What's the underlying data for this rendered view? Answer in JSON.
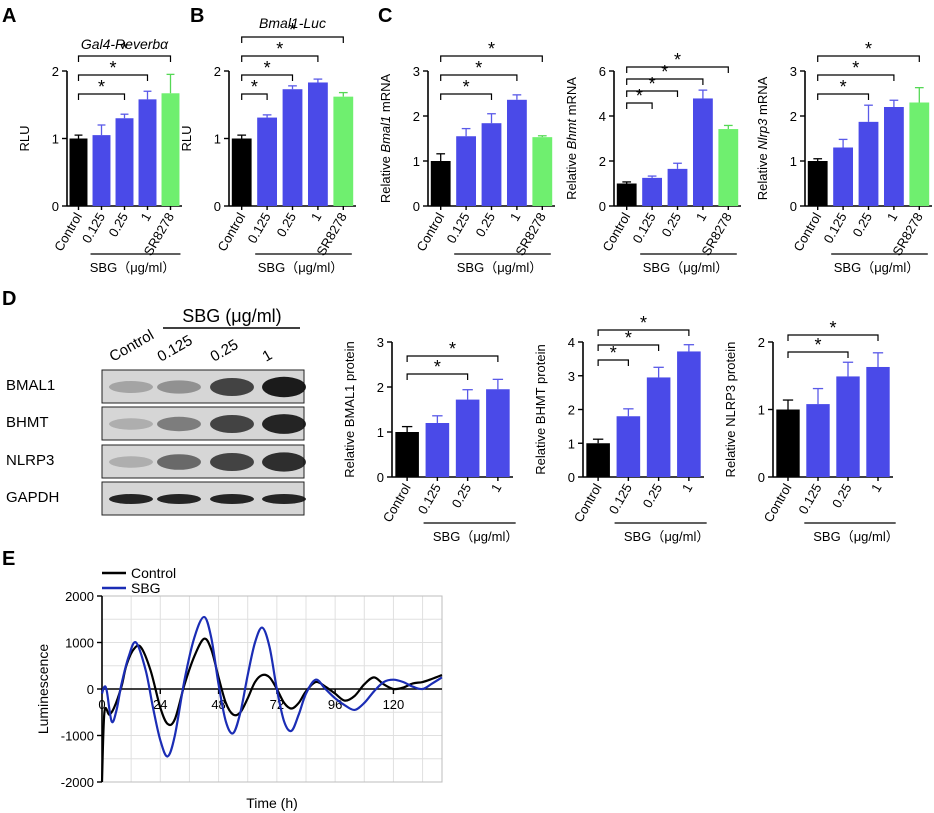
{
  "panel_letters": [
    "A",
    "B",
    "C",
    "D",
    "E"
  ],
  "colors": {
    "control": "#000000",
    "sbg": "#4a4ae8",
    "sr": "#6fef6f",
    "err_sbg": "#5a5ae8",
    "err_sr": "#55d855",
    "line_sbg": "#1b2db5"
  },
  "chart_data": [
    {
      "id": "A",
      "type": "bar",
      "title": "Gal4-Reverbα",
      "ylabel": "RLU",
      "categories": [
        "Control",
        "0.125",
        "0.25",
        "1",
        "SR8278"
      ],
      "values": [
        1.0,
        1.05,
        1.3,
        1.58,
        1.67
      ],
      "errors": [
        0.05,
        0.15,
        0.06,
        0.12,
        0.28
      ],
      "ylim": [
        0,
        2
      ],
      "yticks": [
        "0",
        "1",
        "2"
      ],
      "group_label": "SBG（μg/ml）",
      "significance": [
        {
          "from": 0,
          "to": 2,
          "label": "*"
        },
        {
          "from": 0,
          "to": 3,
          "label": "*"
        },
        {
          "from": 0,
          "to": 4,
          "label": "*"
        }
      ]
    },
    {
      "id": "B",
      "type": "bar",
      "title": "Bmal1-Luc",
      "ylabel": "RLU",
      "categories": [
        "Control",
        "0.125",
        "0.25",
        "1",
        "SR8278"
      ],
      "values": [
        1.0,
        1.31,
        1.73,
        1.83,
        1.62
      ],
      "errors": [
        0.05,
        0.04,
        0.05,
        0.05,
        0.06
      ],
      "ylim": [
        0,
        2
      ],
      "yticks": [
        "0",
        "1",
        "2"
      ],
      "group_label": "SBG（μg/ml）",
      "significance": [
        {
          "from": 0,
          "to": 1,
          "label": "*"
        },
        {
          "from": 0,
          "to": 2,
          "label": "*"
        },
        {
          "from": 0,
          "to": 3,
          "label": "*"
        },
        {
          "from": 0,
          "to": 4,
          "label": "*"
        }
      ]
    },
    {
      "id": "C1",
      "type": "bar",
      "ylabel_prefix": "Relative ",
      "ylabel_italic": "Bmal1",
      "ylabel_suffix": " mRNA",
      "categories": [
        "Control",
        "0.125",
        "0.25",
        "1",
        "SR8278"
      ],
      "values": [
        1.0,
        1.55,
        1.84,
        2.36,
        1.53
      ],
      "errors": [
        0.16,
        0.17,
        0.21,
        0.11,
        0.03
      ],
      "ylim": [
        0,
        3
      ],
      "yticks": [
        "0",
        "1",
        "2",
        "3"
      ],
      "group_label": "SBG（μg/ml）",
      "significance": [
        {
          "from": 0,
          "to": 2,
          "label": "*"
        },
        {
          "from": 0,
          "to": 3,
          "label": "*"
        },
        {
          "from": 0,
          "to": 4,
          "label": "*"
        }
      ]
    },
    {
      "id": "C2",
      "type": "bar",
      "ylabel_prefix": "Relative ",
      "ylabel_italic": "Bhmt",
      "ylabel_suffix": " mRNA",
      "categories": [
        "Control",
        "0.125",
        "0.25",
        "1",
        "SR8278"
      ],
      "values": [
        1.0,
        1.25,
        1.65,
        4.78,
        3.42
      ],
      "errors": [
        0.07,
        0.08,
        0.25,
        0.37,
        0.16
      ],
      "ylim": [
        0,
        6
      ],
      "yticks": [
        "0",
        "2",
        "4",
        "6"
      ],
      "group_label": "SBG（μg/ml）",
      "significance": [
        {
          "from": 0,
          "to": 1,
          "label": "*"
        },
        {
          "from": 0,
          "to": 2,
          "label": "*"
        },
        {
          "from": 0,
          "to": 3,
          "label": "*"
        },
        {
          "from": 0,
          "to": 4,
          "label": "*"
        }
      ]
    },
    {
      "id": "C3",
      "type": "bar",
      "ylabel_prefix": "Relative ",
      "ylabel_italic": "Nlrp3",
      "ylabel_suffix": " mRNA",
      "categories": [
        "Control",
        "0.125",
        "0.25",
        "1",
        "SR8278"
      ],
      "values": [
        1.0,
        1.3,
        1.87,
        2.2,
        2.3
      ],
      "errors": [
        0.05,
        0.18,
        0.37,
        0.15,
        0.33
      ],
      "ylim": [
        0,
        3
      ],
      "yticks": [
        "0",
        "1",
        "2",
        "3"
      ],
      "group_label": "SBG（μg/ml）",
      "significance": [
        {
          "from": 0,
          "to": 2,
          "label": "*"
        },
        {
          "from": 0,
          "to": 3,
          "label": "*"
        },
        {
          "from": 0,
          "to": 4,
          "label": "*"
        }
      ]
    },
    {
      "id": "D1",
      "type": "bar",
      "ylabel": "Relative BMAL1 protein",
      "categories": [
        "Control",
        "0.125",
        "0.25",
        "1"
      ],
      "values": [
        1.0,
        1.2,
        1.72,
        1.95
      ],
      "errors": [
        0.12,
        0.16,
        0.22,
        0.22
      ],
      "ylim": [
        0,
        3
      ],
      "yticks": [
        "0",
        "1",
        "2",
        "3"
      ],
      "group_label": "SBG（μg/ml）",
      "significance": [
        {
          "from": 0,
          "to": 2,
          "label": "*"
        },
        {
          "from": 0,
          "to": 3,
          "label": "*"
        }
      ]
    },
    {
      "id": "D2",
      "type": "bar",
      "ylabel": "Relative BHMT protein",
      "categories": [
        "Control",
        "0.125",
        "0.25",
        "1"
      ],
      "values": [
        1.0,
        1.8,
        2.95,
        3.72
      ],
      "errors": [
        0.12,
        0.22,
        0.3,
        0.2
      ],
      "ylim": [
        0,
        4
      ],
      "yticks": [
        "0",
        "1",
        "2",
        "3",
        "4"
      ],
      "group_label": "SBG（μg/ml）",
      "significance": [
        {
          "from": 0,
          "to": 1,
          "label": "*"
        },
        {
          "from": 0,
          "to": 2,
          "label": "*"
        },
        {
          "from": 0,
          "to": 3,
          "label": "*"
        }
      ]
    },
    {
      "id": "D3",
      "type": "bar",
      "ylabel": "Relative NLRP3 protein",
      "categories": [
        "Control",
        "0.125",
        "0.25",
        "1"
      ],
      "values": [
        1.0,
        1.08,
        1.49,
        1.63
      ],
      "errors": [
        0.14,
        0.23,
        0.21,
        0.21
      ],
      "ylim": [
        0,
        2
      ],
      "yticks": [
        "0",
        "1",
        "2"
      ],
      "group_label": "SBG（μg/ml）",
      "significance": [
        {
          "from": 0,
          "to": 2,
          "label": "*"
        },
        {
          "from": 0,
          "to": 3,
          "label": "*"
        }
      ]
    },
    {
      "id": "E",
      "type": "line",
      "xlabel": "Time (h)",
      "ylabel": "Luminescence",
      "xlim": [
        0,
        140
      ],
      "ylim": [
        -2000,
        2000
      ],
      "xticks": [
        "0",
        "24",
        "48",
        "72",
        "96",
        "120"
      ],
      "yticks": [
        "-2000",
        "-1000",
        "0",
        "1000",
        "2000"
      ],
      "legend": [
        "Control",
        "SBG"
      ],
      "series": [
        {
          "name": "Control",
          "x": [
            0,
            1,
            3,
            5,
            8,
            10,
            13,
            16,
            20,
            24,
            27,
            30,
            34,
            38,
            42,
            45,
            48,
            51,
            54,
            57,
            60,
            63,
            66,
            69,
            72,
            75,
            78,
            81,
            84,
            88,
            92,
            96,
            100,
            104,
            108,
            112,
            116,
            120,
            124,
            128,
            132,
            136,
            140
          ],
          "y": [
            -2000,
            -500,
            -550,
            -400,
            50,
            500,
            850,
            900,
            400,
            -400,
            -750,
            -650,
            100,
            700,
            1080,
            850,
            250,
            -300,
            -550,
            -500,
            -200,
            150,
            300,
            250,
            0,
            -300,
            -420,
            -300,
            -50,
            150,
            50,
            -100,
            -250,
            -150,
            100,
            250,
            100,
            0,
            30,
            120,
            150,
            220,
            300
          ]
        },
        {
          "name": "SBG",
          "x": [
            0,
            1,
            2,
            4,
            6,
            8,
            11,
            14,
            18,
            21,
            24,
            27,
            30,
            34,
            38,
            42,
            45,
            48,
            51,
            54,
            57,
            60,
            63,
            66,
            69,
            72,
            75,
            78,
            81,
            84,
            88,
            92,
            96,
            100,
            104,
            108,
            112,
            116,
            120,
            124,
            128,
            132,
            136,
            140
          ],
          "y": [
            -100,
            50,
            -50,
            -700,
            -450,
            100,
            700,
            1000,
            400,
            -400,
            -1100,
            -1450,
            -1000,
            200,
            1100,
            1550,
            1100,
            100,
            -700,
            -950,
            -500,
            300,
            1000,
            1320,
            900,
            0,
            -700,
            -900,
            -550,
            -100,
            200,
            0,
            -200,
            -350,
            -450,
            -300,
            -50,
            150,
            200,
            150,
            50,
            0,
            120,
            250
          ]
        }
      ]
    }
  ],
  "western_blot": {
    "header": "SBG (μg/ml)",
    "lanes": [
      "Control",
      "0.125",
      "0.25",
      "1"
    ],
    "rows": [
      "BMAL1",
      "BHMT",
      "NLRP3",
      "GAPDH"
    ]
  }
}
